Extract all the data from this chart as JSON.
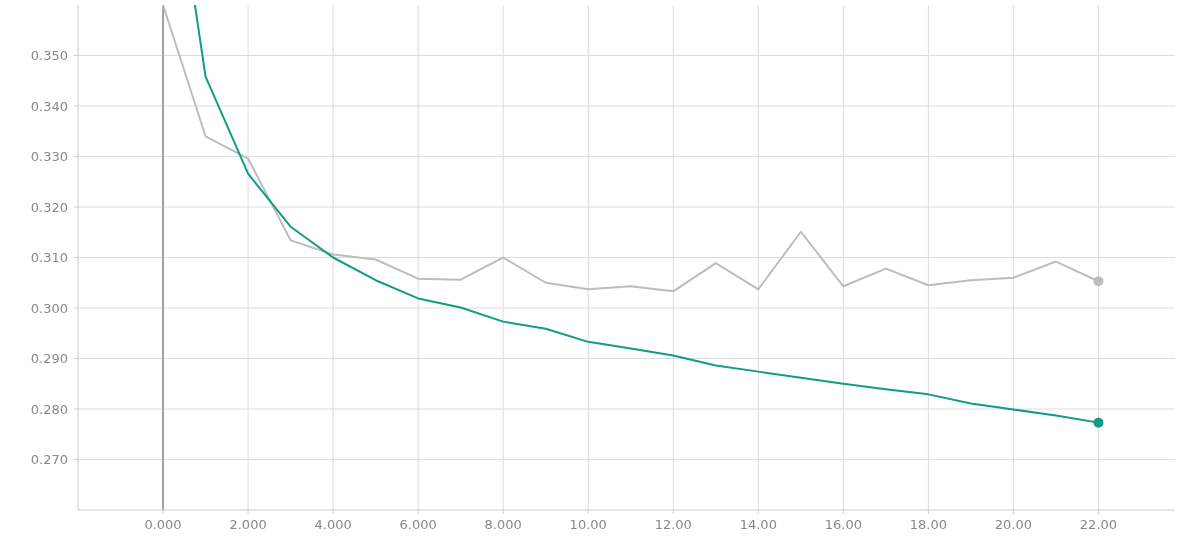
{
  "chart_data": {
    "type": "line",
    "xlim": [
      -2,
      23.8
    ],
    "ylim": [
      0.26,
      0.36
    ],
    "xticks": [
      {
        "value": 0,
        "label": "0.000"
      },
      {
        "value": 2,
        "label": "2.000"
      },
      {
        "value": 4,
        "label": "4.000"
      },
      {
        "value": 6,
        "label": "6.000"
      },
      {
        "value": 8,
        "label": "8.000"
      },
      {
        "value": 10,
        "label": "10.00"
      },
      {
        "value": 12,
        "label": "12.00"
      },
      {
        "value": 14,
        "label": "14.00"
      },
      {
        "value": 16,
        "label": "16.00"
      },
      {
        "value": 18,
        "label": "18.00"
      },
      {
        "value": 20,
        "label": "20.00"
      },
      {
        "value": 22,
        "label": "22.00"
      }
    ],
    "yticks": [
      {
        "value": 0.27,
        "label": "0.270"
      },
      {
        "value": 0.28,
        "label": "0.280"
      },
      {
        "value": 0.29,
        "label": "0.290"
      },
      {
        "value": 0.3,
        "label": "0.300"
      },
      {
        "value": 0.31,
        "label": "0.310"
      },
      {
        "value": 0.32,
        "label": "0.320"
      },
      {
        "value": 0.33,
        "label": "0.330"
      },
      {
        "value": 0.34,
        "label": "0.340"
      },
      {
        "value": 0.35,
        "label": "0.350"
      }
    ],
    "grid": true,
    "line_style": "solid",
    "ref_lines": [
      {
        "axis": "x",
        "value": 0,
        "color": "#a0a0a0"
      }
    ],
    "series": [
      {
        "color": "#bdbdbd",
        "x": [
          0,
          1,
          2,
          3,
          4,
          5,
          6,
          7,
          8,
          9,
          10,
          11,
          12,
          13,
          14,
          15,
          16,
          17,
          18,
          19,
          20,
          21,
          22
        ],
        "values": [
          0.36,
          0.334,
          0.3296,
          0.3134,
          0.3106,
          0.3096,
          0.3058,
          0.3056,
          0.31,
          0.305,
          0.3037,
          0.3043,
          0.3033,
          0.3089,
          0.3037,
          0.3151,
          0.3043,
          0.3078,
          0.3045,
          0.3055,
          0.306,
          0.3092,
          0.3053
        ]
      },
      {
        "color": "#139c85",
        "x": [
          0.75,
          1,
          2,
          3,
          4,
          5,
          6,
          7,
          8,
          9,
          10,
          11,
          12,
          13,
          14,
          15,
          16,
          17,
          18,
          19,
          20,
          21,
          22
        ],
        "values": [
          0.36,
          0.3458,
          0.3266,
          0.3161,
          0.31,
          0.3055,
          0.3019,
          0.3001,
          0.2973,
          0.2959,
          0.2933,
          0.292,
          0.2906,
          0.2886,
          0.2874,
          0.2862,
          0.285,
          0.2839,
          0.2829,
          0.2811,
          0.2799,
          0.2787,
          0.2773
        ]
      }
    ]
  }
}
